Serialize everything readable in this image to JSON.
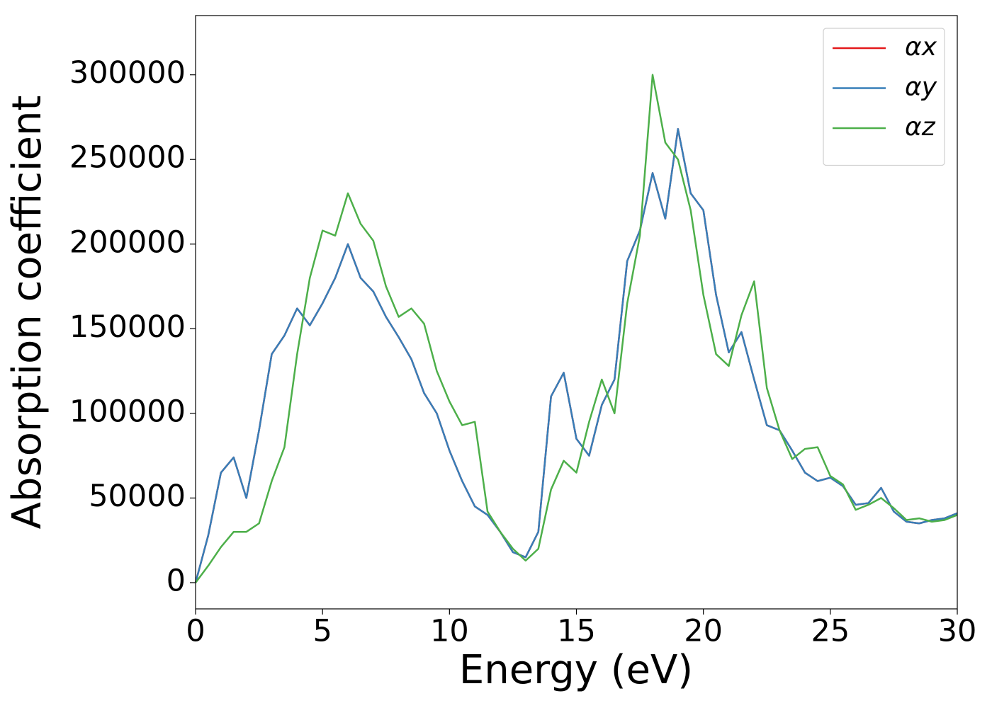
{
  "chart_data": {
    "type": "line",
    "xlabel": "Energy (eV)",
    "ylabel": "Absorption coefficient",
    "x": [
      0,
      0.5,
      1,
      1.5,
      2,
      2.5,
      3,
      3.5,
      4,
      4.5,
      5,
      5.5,
      6,
      6.5,
      7,
      7.5,
      8,
      8.5,
      9,
      9.5,
      10,
      10.5,
      11,
      11.5,
      12,
      12.5,
      13,
      13.5,
      14,
      14.5,
      15,
      15.5,
      16,
      16.5,
      17,
      17.5,
      18,
      18.5,
      19,
      19.5,
      20,
      20.5,
      21,
      21.5,
      22,
      22.5,
      23,
      23.5,
      24,
      24.5,
      25,
      25.5,
      26,
      26.5,
      27,
      27.5,
      28,
      28.5,
      29,
      29.5,
      30
    ],
    "series": [
      {
        "name": "αx",
        "color": "#e41a1c",
        "values": [
          0,
          28000,
          65000,
          74000,
          50000,
          90000,
          135000,
          146000,
          162000,
          152000,
          165000,
          180000,
          200000,
          180000,
          172000,
          157000,
          145000,
          132000,
          112000,
          100000,
          78000,
          60000,
          45000,
          40000,
          30000,
          18000,
          15000,
          30000,
          110000,
          124000,
          85000,
          75000,
          105000,
          120000,
          190000,
          208000,
          242000,
          215000,
          268000,
          230000,
          220000,
          170000,
          136000,
          148000,
          120000,
          93000,
          90000,
          78000,
          65000,
          60000,
          62000,
          57000,
          46000,
          47000,
          56000,
          42000,
          36000,
          35000,
          37000,
          38000,
          41000
        ]
      },
      {
        "name": "αy",
        "color": "#377eb8",
        "values": [
          0,
          28000,
          65000,
          74000,
          50000,
          90000,
          135000,
          146000,
          162000,
          152000,
          165000,
          180000,
          200000,
          180000,
          172000,
          157000,
          145000,
          132000,
          112000,
          100000,
          78000,
          60000,
          45000,
          40000,
          30000,
          18000,
          15000,
          30000,
          110000,
          124000,
          85000,
          75000,
          105000,
          120000,
          190000,
          208000,
          242000,
          215000,
          268000,
          230000,
          220000,
          170000,
          136000,
          148000,
          120000,
          93000,
          90000,
          78000,
          65000,
          60000,
          62000,
          57000,
          46000,
          47000,
          56000,
          42000,
          36000,
          35000,
          37000,
          38000,
          41000
        ]
      },
      {
        "name": "αz",
        "color": "#4daf4a",
        "values": [
          0,
          10000,
          21000,
          30000,
          30000,
          35000,
          60000,
          80000,
          135000,
          180000,
          208000,
          205000,
          230000,
          212000,
          202000,
          175000,
          157000,
          162000,
          153000,
          125000,
          107000,
          93000,
          95000,
          42000,
          30000,
          20000,
          13000,
          20000,
          55000,
          72000,
          65000,
          95000,
          120000,
          100000,
          165000,
          205000,
          300000,
          260000,
          250000,
          220000,
          170000,
          135000,
          128000,
          158000,
          178000,
          115000,
          90000,
          73000,
          79000,
          80000,
          63000,
          58000,
          43000,
          46000,
          50000,
          44000,
          37000,
          38000,
          36000,
          37000,
          40000
        ]
      }
    ],
    "xlim": [
      0,
      30
    ],
    "xticks": [
      0,
      5,
      10,
      15,
      20,
      25,
      30
    ],
    "ylim": [
      -15500,
      335000
    ],
    "yticks": [
      0,
      50000,
      100000,
      150000,
      200000,
      250000,
      300000
    ],
    "legend": "upper right"
  }
}
